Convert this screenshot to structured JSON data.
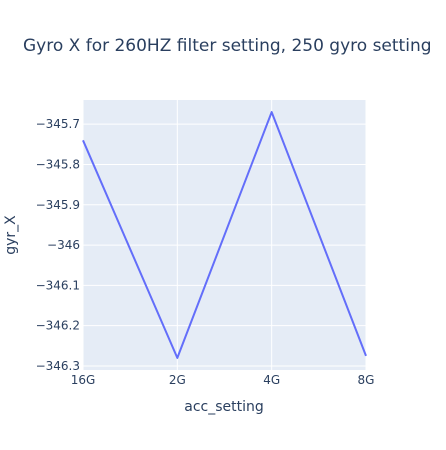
{
  "chart_data": {
    "type": "line",
    "title": "Gyro X for 260HZ filter setting, 250 gyro setting",
    "xlabel": "acc_setting",
    "ylabel": "gyr_X",
    "categories": [
      "16G",
      "2G",
      "4G",
      "8G"
    ],
    "series": [
      {
        "values": [
          -345.74,
          -346.28,
          -345.67,
          -346.275
        ],
        "color": "#636efa"
      }
    ],
    "ylim": [
      -346.31,
      -345.64
    ],
    "yticks": [
      -345.7,
      -345.8,
      -345.9,
      -346,
      -346.1,
      -346.2,
      -346.3
    ],
    "ytick_labels": [
      "−345.7",
      "−345.8",
      "−345.9",
      "−346",
      "−346.1",
      "−346.2",
      "−346.3"
    ],
    "grid": true,
    "plot_background": "#e5ecf6",
    "grid_color": "#ffffff"
  }
}
